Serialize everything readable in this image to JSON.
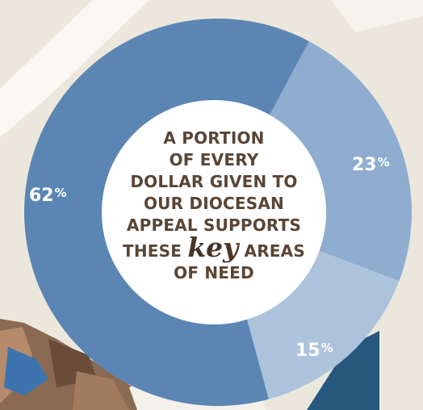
{
  "chart_data": {
    "type": "pie",
    "title_lines": [
      "A PORTION",
      "OF EVERY",
      "DOLLAR GIVEN TO",
      "OUR DIOCESAN",
      "APPEAL SUPPORTS"
    ],
    "title_tail": {
      "before": "THESE",
      "key_word": "key",
      "after": "AREAS",
      "last_line": "OF NEED"
    },
    "slices": [
      {
        "value": 62,
        "label": "62",
        "color": "#5b86b4"
      },
      {
        "value": 23,
        "label": "23",
        "color": "#8eadcf"
      },
      {
        "value": 15,
        "label": "15",
        "color": "#adc3dc"
      }
    ],
    "percent_sign": "%"
  }
}
